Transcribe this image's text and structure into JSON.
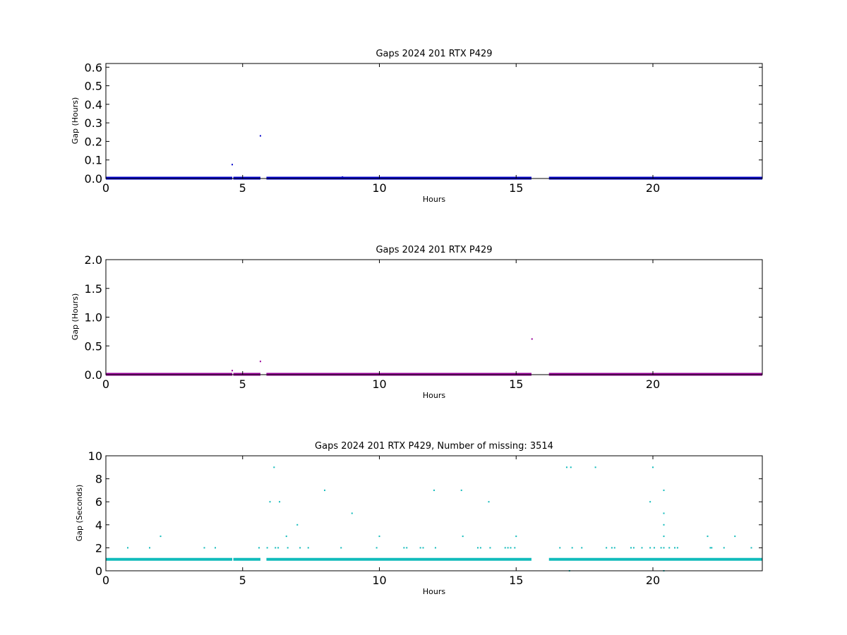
{
  "chart_data": [
    {
      "type": "scatter",
      "title": "Gaps 2024 201 RTX  P429",
      "xlabel": "Hours",
      "ylabel": "Gap (Hours)",
      "xlim": [
        0,
        24
      ],
      "ylim": [
        0,
        0.62
      ],
      "xticks": [
        0,
        5,
        10,
        15,
        20
      ],
      "yticks": [
        0.0,
        0.1,
        0.2,
        0.3,
        0.4,
        0.5,
        0.6
      ],
      "ytick_labels": [
        "0.0",
        "0.1",
        "0.2",
        "0.3",
        "0.4",
        "0.5",
        "0.6"
      ],
      "grid": false,
      "color": "#0000cc",
      "baseline": {
        "y": 0.0014,
        "segments": [
          [
            0,
            4.62
          ],
          [
            4.66,
            5.65
          ],
          [
            5.87,
            15.56
          ],
          [
            16.2,
            24
          ]
        ]
      },
      "outliers": [
        {
          "x": 4.62,
          "y": 0.075
        },
        {
          "x": 5.65,
          "y": 0.23
        },
        {
          "x": 8.65,
          "y": 0.008
        }
      ]
    },
    {
      "type": "scatter",
      "title": "Gaps 2024 201 RTX  P429",
      "xlabel": "Hours",
      "ylabel": "Gap (Hours)",
      "xlim": [
        0,
        24
      ],
      "ylim": [
        0,
        2.0
      ],
      "xticks": [
        0,
        5,
        10,
        15,
        20
      ],
      "yticks": [
        0.0,
        0.5,
        1.0,
        1.5,
        2.0
      ],
      "ytick_labels": [
        "0.0",
        "0.5",
        "1.0",
        "1.5",
        "2.0"
      ],
      "grid": false,
      "color": "#990099",
      "baseline": {
        "y": 0.0014,
        "segments": [
          [
            0,
            4.62
          ],
          [
            4.66,
            5.65
          ],
          [
            5.87,
            15.56
          ],
          [
            16.2,
            24
          ]
        ]
      },
      "outliers": [
        {
          "x": 4.62,
          "y": 0.07
        },
        {
          "x": 5.65,
          "y": 0.23
        },
        {
          "x": 15.58,
          "y": 0.62
        }
      ]
    },
    {
      "type": "scatter",
      "title": "Gaps 2024 201 RTX  P429, Number of missing: 3514",
      "xlabel": "Hours",
      "ylabel": "Gap (Seconds)",
      "xlim": [
        0,
        24
      ],
      "ylim": [
        0,
        10
      ],
      "xticks": [
        0,
        5,
        10,
        15,
        20
      ],
      "yticks": [
        0,
        2,
        4,
        6,
        8,
        10
      ],
      "ytick_labels": [
        "0",
        "2",
        "4",
        "6",
        "8",
        "10"
      ],
      "grid": false,
      "color": "#11bbbb",
      "baseline": {
        "y": 1,
        "segments": [
          [
            0,
            4.62
          ],
          [
            4.66,
            5.65
          ],
          [
            5.87,
            15.56
          ],
          [
            16.2,
            24
          ]
        ]
      },
      "outliers": [
        {
          "x": 0.8,
          "y": 2
        },
        {
          "x": 1.6,
          "y": 2
        },
        {
          "x": 2.0,
          "y": 3
        },
        {
          "x": 3.6,
          "y": 2
        },
        {
          "x": 4.0,
          "y": 2
        },
        {
          "x": 5.6,
          "y": 2
        },
        {
          "x": 5.9,
          "y": 2
        },
        {
          "x": 6.0,
          "y": 6
        },
        {
          "x": 6.15,
          "y": 9
        },
        {
          "x": 6.2,
          "y": 2
        },
        {
          "x": 6.3,
          "y": 2
        },
        {
          "x": 6.35,
          "y": 6
        },
        {
          "x": 6.6,
          "y": 3
        },
        {
          "x": 6.65,
          "y": 2
        },
        {
          "x": 7.0,
          "y": 4
        },
        {
          "x": 7.1,
          "y": 2
        },
        {
          "x": 7.4,
          "y": 2
        },
        {
          "x": 8.0,
          "y": 7
        },
        {
          "x": 8.6,
          "y": 2
        },
        {
          "x": 9.0,
          "y": 5
        },
        {
          "x": 9.9,
          "y": 2
        },
        {
          "x": 10.0,
          "y": 3
        },
        {
          "x": 10.9,
          "y": 2
        },
        {
          "x": 11.0,
          "y": 2
        },
        {
          "x": 11.5,
          "y": 2
        },
        {
          "x": 11.6,
          "y": 2
        },
        {
          "x": 12.0,
          "y": 7
        },
        {
          "x": 12.05,
          "y": 2
        },
        {
          "x": 13.0,
          "y": 7
        },
        {
          "x": 13.05,
          "y": 3
        },
        {
          "x": 13.6,
          "y": 2
        },
        {
          "x": 13.7,
          "y": 2
        },
        {
          "x": 14.0,
          "y": 6
        },
        {
          "x": 14.05,
          "y": 2
        },
        {
          "x": 14.6,
          "y": 2
        },
        {
          "x": 14.7,
          "y": 2
        },
        {
          "x": 14.8,
          "y": 2
        },
        {
          "x": 14.95,
          "y": 2
        },
        {
          "x": 15.0,
          "y": 3
        },
        {
          "x": 16.6,
          "y": 2
        },
        {
          "x": 16.85,
          "y": 9
        },
        {
          "x": 16.95,
          "y": 0
        },
        {
          "x": 17.0,
          "y": 9
        },
        {
          "x": 17.05,
          "y": 2
        },
        {
          "x": 17.4,
          "y": 2
        },
        {
          "x": 17.9,
          "y": 9
        },
        {
          "x": 18.3,
          "y": 2
        },
        {
          "x": 18.5,
          "y": 2
        },
        {
          "x": 18.6,
          "y": 2
        },
        {
          "x": 19.2,
          "y": 2
        },
        {
          "x": 19.3,
          "y": 2
        },
        {
          "x": 19.6,
          "y": 2
        },
        {
          "x": 19.9,
          "y": 2
        },
        {
          "x": 19.9,
          "y": 6
        },
        {
          "x": 20.0,
          "y": 9
        },
        {
          "x": 20.05,
          "y": 2
        },
        {
          "x": 20.3,
          "y": 2
        },
        {
          "x": 20.4,
          "y": 7
        },
        {
          "x": 20.4,
          "y": 5
        },
        {
          "x": 20.4,
          "y": 4
        },
        {
          "x": 20.4,
          "y": 3
        },
        {
          "x": 20.4,
          "y": 2
        },
        {
          "x": 20.4,
          "y": 0
        },
        {
          "x": 20.6,
          "y": 2
        },
        {
          "x": 20.8,
          "y": 2
        },
        {
          "x": 20.9,
          "y": 2
        },
        {
          "x": 22.0,
          "y": 3
        },
        {
          "x": 22.1,
          "y": 2
        },
        {
          "x": 22.15,
          "y": 2
        },
        {
          "x": 22.6,
          "y": 2
        },
        {
          "x": 23.0,
          "y": 3
        },
        {
          "x": 23.6,
          "y": 2
        }
      ]
    }
  ]
}
